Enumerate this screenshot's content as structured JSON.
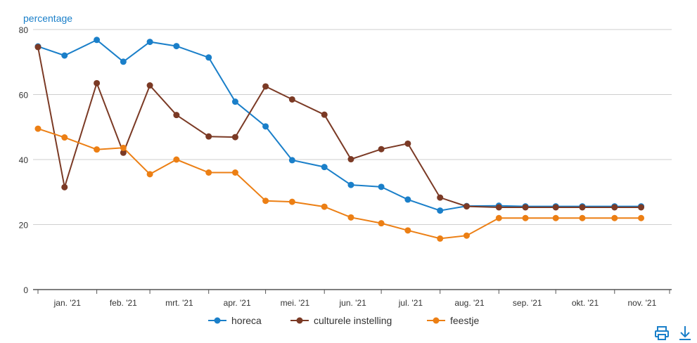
{
  "chart_data": {
    "type": "line",
    "ylabel": "percentage",
    "ylim": [
      0,
      80
    ],
    "yticks": [
      0,
      20,
      40,
      60,
      80
    ],
    "x_tick_labels": [
      "jan. '21",
      "feb. '21",
      "mrt. '21",
      "apr. '21",
      "mei. '21",
      "jun. '21",
      "jul. '21",
      "aug. '21",
      "sep. '21",
      "okt. '21",
      "nov. '21"
    ],
    "x": [
      "2021-01-01",
      "2021-01-15",
      "2021-02-01",
      "2021-02-15",
      "2021-03-01",
      "2021-03-15",
      "2021-04-01",
      "2021-04-15",
      "2021-05-01",
      "2021-05-15",
      "2021-06-01",
      "2021-06-15",
      "2021-07-01",
      "2021-07-15",
      "2021-08-01",
      "2021-08-15",
      "2021-09-01",
      "2021-09-15",
      "2021-10-01",
      "2021-10-15",
      "2021-11-01",
      "2021-11-15"
    ],
    "series": [
      {
        "name": "horeca",
        "color": "#1a7fc9",
        "values": [
          74.8,
          72.0,
          76.8,
          70.1,
          76.2,
          74.9,
          71.4,
          57.8,
          50.2,
          39.8,
          37.7,
          32.2,
          31.6,
          27.7,
          24.3,
          25.7,
          25.8,
          25.6,
          25.6,
          25.6,
          25.6,
          25.6
        ]
      },
      {
        "name": "culturele instelling",
        "color": "#7b3a25",
        "values": [
          74.6,
          31.5,
          63.5,
          42.1,
          62.8,
          53.7,
          47.1,
          46.9,
          62.5,
          58.5,
          53.8,
          40.1,
          43.2,
          44.9,
          28.3,
          25.6,
          25.3,
          25.3,
          25.3,
          25.3,
          25.3,
          25.3
        ]
      },
      {
        "name": "feestje",
        "color": "#ec7f14",
        "values": [
          49.5,
          46.8,
          43.1,
          43.6,
          35.5,
          40.0,
          36.0,
          36.0,
          27.3,
          27.0,
          25.5,
          22.2,
          20.4,
          18.2,
          15.7,
          16.6,
          22.0,
          22.0,
          22.0,
          22.0,
          22.0,
          22.0
        ]
      }
    ],
    "grid": true,
    "legend_position": "bottom"
  },
  "toolbar": {
    "print_icon": "printer-icon",
    "download_icon": "download-icon",
    "accent_color": "#1a7fc9"
  }
}
